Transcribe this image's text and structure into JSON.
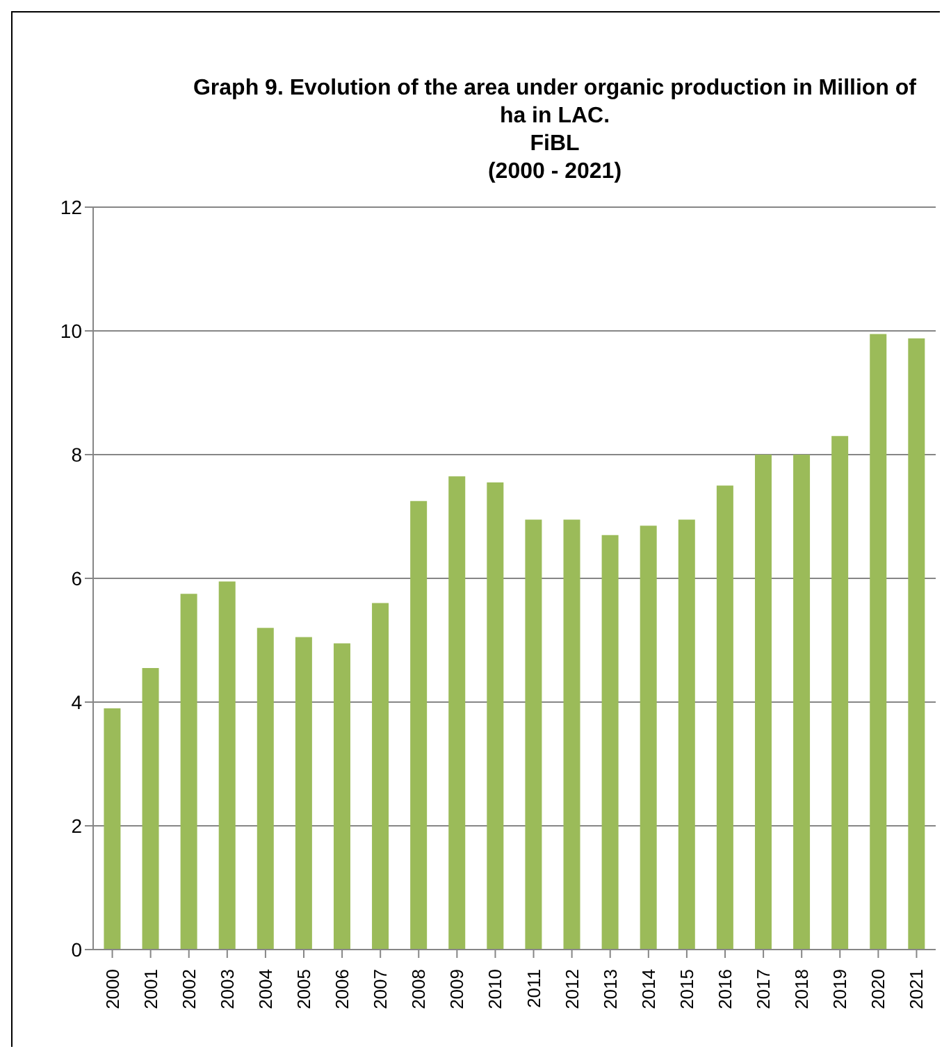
{
  "chart_data": {
    "type": "bar",
    "title": "Graph 9. Evolution of the area under organic production in Million of ha in LAC.\nFiBL\n(2000 - 2021)",
    "categories": [
      "2000",
      "2001",
      "2002",
      "2003",
      "2004",
      "2005",
      "2006",
      "2007",
      "2008",
      "2009",
      "2010",
      "2011",
      "2012",
      "2013",
      "2014",
      "2015",
      "2016",
      "2017",
      "2018",
      "2019",
      "2020",
      "2021"
    ],
    "values": [
      3.9,
      4.55,
      5.75,
      5.95,
      5.2,
      5.05,
      4.95,
      5.6,
      7.25,
      7.65,
      7.55,
      6.95,
      6.95,
      6.7,
      6.85,
      6.95,
      7.5,
      8.0,
      8.0,
      8.3,
      9.95,
      9.88
    ],
    "color": "#9bbb59",
    "ylim": [
      0,
      12
    ],
    "yticks": [
      0,
      2,
      4,
      6,
      8,
      10,
      12
    ],
    "grid": "y",
    "legend": false
  }
}
